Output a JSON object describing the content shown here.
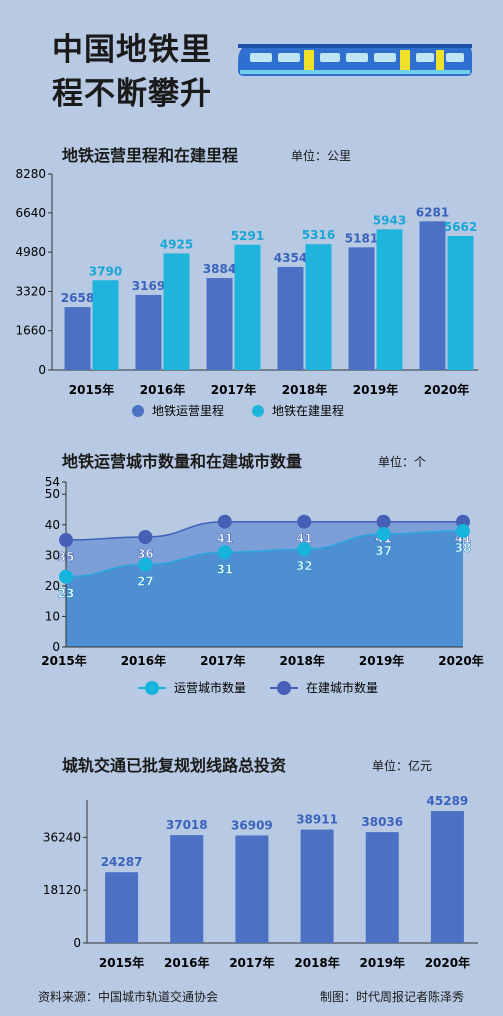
{
  "title_lines": [
    "中国地铁里",
    "程不断攀升"
  ],
  "footer": {
    "source": "资料来源：中国城市轨道交通协会",
    "credit": "制图：时代周报记者陈泽秀"
  },
  "colors": {
    "background": "#b7c9e3",
    "series_a": "#4c70c4",
    "series_b": "#1fb4dc",
    "label_a": "#3a63bd",
    "label_b": "#1aa6d6"
  },
  "chart_data": [
    {
      "type": "bar",
      "title": "地铁运营里程和在建里程",
      "unit": "单位：公里",
      "categories": [
        "2015年",
        "2016年",
        "2017年",
        "2018年",
        "2019年",
        "2020年"
      ],
      "yticks": [
        "8280",
        "6640",
        "4980",
        "3320",
        "1660",
        "0"
      ],
      "ylim": [
        0,
        8280
      ],
      "series": [
        {
          "name": "地铁运营里程",
          "values": [
            2658,
            3169,
            3884,
            4354,
            5181,
            6281
          ]
        },
        {
          "name": "地铁在建里程",
          "values": [
            3790,
            4925,
            5291,
            5316,
            5943,
            5662
          ]
        }
      ],
      "legend": "bottom"
    },
    {
      "type": "area",
      "title": "地铁运营城市数量和在建城市数量",
      "unit": "单位：个",
      "categories": [
        "2015年",
        "2016年",
        "2017年",
        "2018年",
        "2019年",
        "2020年"
      ],
      "yticks": [
        "54",
        "50",
        "40",
        "30",
        "20",
        "10",
        "0"
      ],
      "ylim": [
        0,
        54
      ],
      "series": [
        {
          "name": "运营城市数量",
          "values": [
            23,
            27,
            31,
            32,
            37,
            38
          ]
        },
        {
          "name": "在建城市数量",
          "values": [
            35,
            36,
            41,
            41,
            41,
            41
          ]
        }
      ],
      "legend": "bottom"
    },
    {
      "type": "bar",
      "title": "城轨交通已批复规划线路总投资",
      "unit": "单位：亿元",
      "categories": [
        "2015年",
        "2016年",
        "2017年",
        "2018年",
        "2019年",
        "2020年"
      ],
      "yticks": [
        "36240",
        "18120",
        "0"
      ],
      "ylim": [
        0,
        45289
      ],
      "series": [
        {
          "name": "总投资",
          "values": [
            24287,
            37018,
            36909,
            38911,
            38036,
            45289
          ]
        }
      ]
    }
  ]
}
